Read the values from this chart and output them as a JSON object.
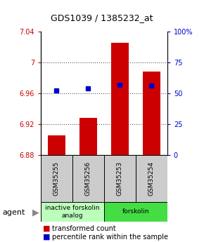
{
  "title": "GDS1039 / 1385232_at",
  "samples": [
    "GSM35255",
    "GSM35256",
    "GSM35253",
    "GSM35254"
  ],
  "bar_values": [
    6.905,
    6.928,
    7.025,
    6.988
  ],
  "percentile_values": [
    52,
    54,
    57,
    56
  ],
  "ylim_left": [
    6.88,
    7.04
  ],
  "ylim_right": [
    0,
    100
  ],
  "yticks_left": [
    6.88,
    6.92,
    6.96,
    7.0,
    7.04
  ],
  "ytick_labels_left": [
    "6.88",
    "6.92",
    "6.96",
    "7",
    "7.04"
  ],
  "yticks_right": [
    0,
    25,
    50,
    75,
    100
  ],
  "ytick_labels_right": [
    "0",
    "25",
    "50",
    "75",
    "100%"
  ],
  "bar_color": "#cc0000",
  "dot_color": "#0000cc",
  "bar_bottom": 6.88,
  "groups": [
    {
      "label": "inactive forskolin\nanalog",
      "color": "#bbffbb",
      "span": [
        0,
        2
      ]
    },
    {
      "label": "forskolin",
      "color": "#44dd44",
      "span": [
        2,
        4
      ]
    }
  ],
  "agent_label": "agent",
  "legend_bar_label": "transformed count",
  "legend_dot_label": "percentile rank within the sample",
  "dotted_line_color": "#555555",
  "grid_ticks": [
    6.92,
    6.96,
    7.0
  ],
  "sample_box_color": "#cccccc",
  "bar_width": 0.55,
  "title_fontsize": 9,
  "tick_fontsize": 7,
  "legend_fontsize": 7,
  "sample_fontsize": 6.5,
  "group_fontsize": 6.5
}
